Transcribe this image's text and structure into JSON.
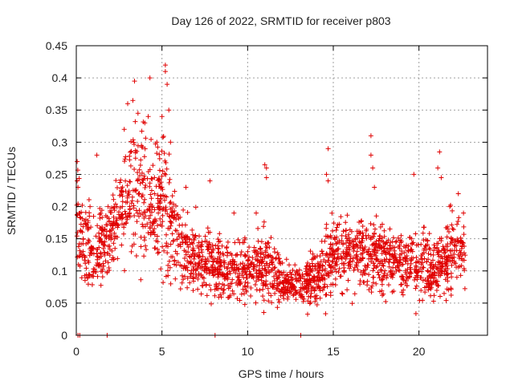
{
  "chart_data": {
    "type": "scatter",
    "title": "Day 126 of 2022, SRMTID for receiver p803",
    "xlabel": "GPS time / hours",
    "ylabel": "SRMTID / TECUs",
    "xlim": [
      0,
      24
    ],
    "ylim": [
      0,
      0.45
    ],
    "x_ticks": [
      0,
      5,
      10,
      15,
      20
    ],
    "y_ticks": [
      0,
      0.05,
      0.1,
      0.15,
      0.2,
      0.25,
      0.3,
      0.35,
      0.4,
      0.45
    ],
    "x_tick_labels": [
      "0",
      "5",
      "10",
      "15",
      "20"
    ],
    "y_tick_labels": [
      "0",
      "0.05",
      "0.1",
      "0.15",
      "0.2",
      "0.25",
      "0.3",
      "0.35",
      "0.4",
      "0.45"
    ],
    "grid": true,
    "marker": "+",
    "color": "#e00000",
    "series": [
      {
        "name": "SRMTID",
        "trend": [
          [
            0.0,
            0.17,
            0.05
          ],
          [
            0.5,
            0.14,
            0.04
          ],
          [
            1.0,
            0.13,
            0.04
          ],
          [
            1.5,
            0.14,
            0.04
          ],
          [
            2.0,
            0.15,
            0.04
          ],
          [
            2.5,
            0.18,
            0.05
          ],
          [
            3.0,
            0.22,
            0.06
          ],
          [
            3.5,
            0.24,
            0.07
          ],
          [
            4.0,
            0.22,
            0.07
          ],
          [
            4.5,
            0.19,
            0.06
          ],
          [
            5.0,
            0.2,
            0.07
          ],
          [
            5.5,
            0.17,
            0.05
          ],
          [
            6.0,
            0.14,
            0.04
          ],
          [
            7.0,
            0.12,
            0.035
          ],
          [
            8.0,
            0.11,
            0.03
          ],
          [
            9.0,
            0.095,
            0.03
          ],
          [
            10.0,
            0.1,
            0.03
          ],
          [
            11.0,
            0.11,
            0.035
          ],
          [
            12.0,
            0.085,
            0.025
          ],
          [
            13.0,
            0.075,
            0.02
          ],
          [
            14.0,
            0.09,
            0.03
          ],
          [
            15.0,
            0.12,
            0.04
          ],
          [
            16.0,
            0.13,
            0.035
          ],
          [
            17.0,
            0.13,
            0.04
          ],
          [
            18.0,
            0.12,
            0.035
          ],
          [
            19.0,
            0.11,
            0.03
          ],
          [
            20.0,
            0.11,
            0.035
          ],
          [
            21.0,
            0.1,
            0.03
          ],
          [
            22.0,
            0.13,
            0.04
          ],
          [
            22.7,
            0.13,
            0.04
          ]
        ],
        "highlights": [
          [
            0.05,
            0.27
          ],
          [
            0.05,
            0.24
          ],
          [
            0.1,
            0.23
          ],
          [
            1.2,
            0.28
          ],
          [
            2.8,
            0.32
          ],
          [
            3.0,
            0.36
          ],
          [
            3.3,
            0.365
          ],
          [
            3.4,
            0.395
          ],
          [
            3.6,
            0.345
          ],
          [
            4.0,
            0.33
          ],
          [
            4.2,
            0.34
          ],
          [
            4.3,
            0.4
          ],
          [
            4.7,
            0.3
          ],
          [
            5.0,
            0.34
          ],
          [
            5.2,
            0.42
          ],
          [
            5.2,
            0.41
          ],
          [
            5.3,
            0.39
          ],
          [
            5.4,
            0.35
          ],
          [
            5.5,
            0.3
          ],
          [
            6.4,
            0.23
          ],
          [
            7.8,
            0.24
          ],
          [
            9.2,
            0.19
          ],
          [
            10.5,
            0.19
          ],
          [
            11.0,
            0.265
          ],
          [
            11.1,
            0.26
          ],
          [
            11.1,
            0.245
          ],
          [
            14.7,
            0.29
          ],
          [
            14.6,
            0.25
          ],
          [
            14.7,
            0.24
          ],
          [
            17.2,
            0.31
          ],
          [
            17.2,
            0.28
          ],
          [
            17.3,
            0.26
          ],
          [
            17.4,
            0.23
          ],
          [
            19.7,
            0.25
          ],
          [
            21.2,
            0.285
          ],
          [
            21.1,
            0.26
          ],
          [
            21.3,
            0.245
          ],
          [
            21.8,
            0.2
          ],
          [
            22.3,
            0.22
          ],
          [
            22.6,
            0.19
          ]
        ],
        "zero_points": [
          0.1,
          0.2,
          1.8,
          8.1,
          13.1
        ],
        "point_count": 2200
      }
    ]
  }
}
